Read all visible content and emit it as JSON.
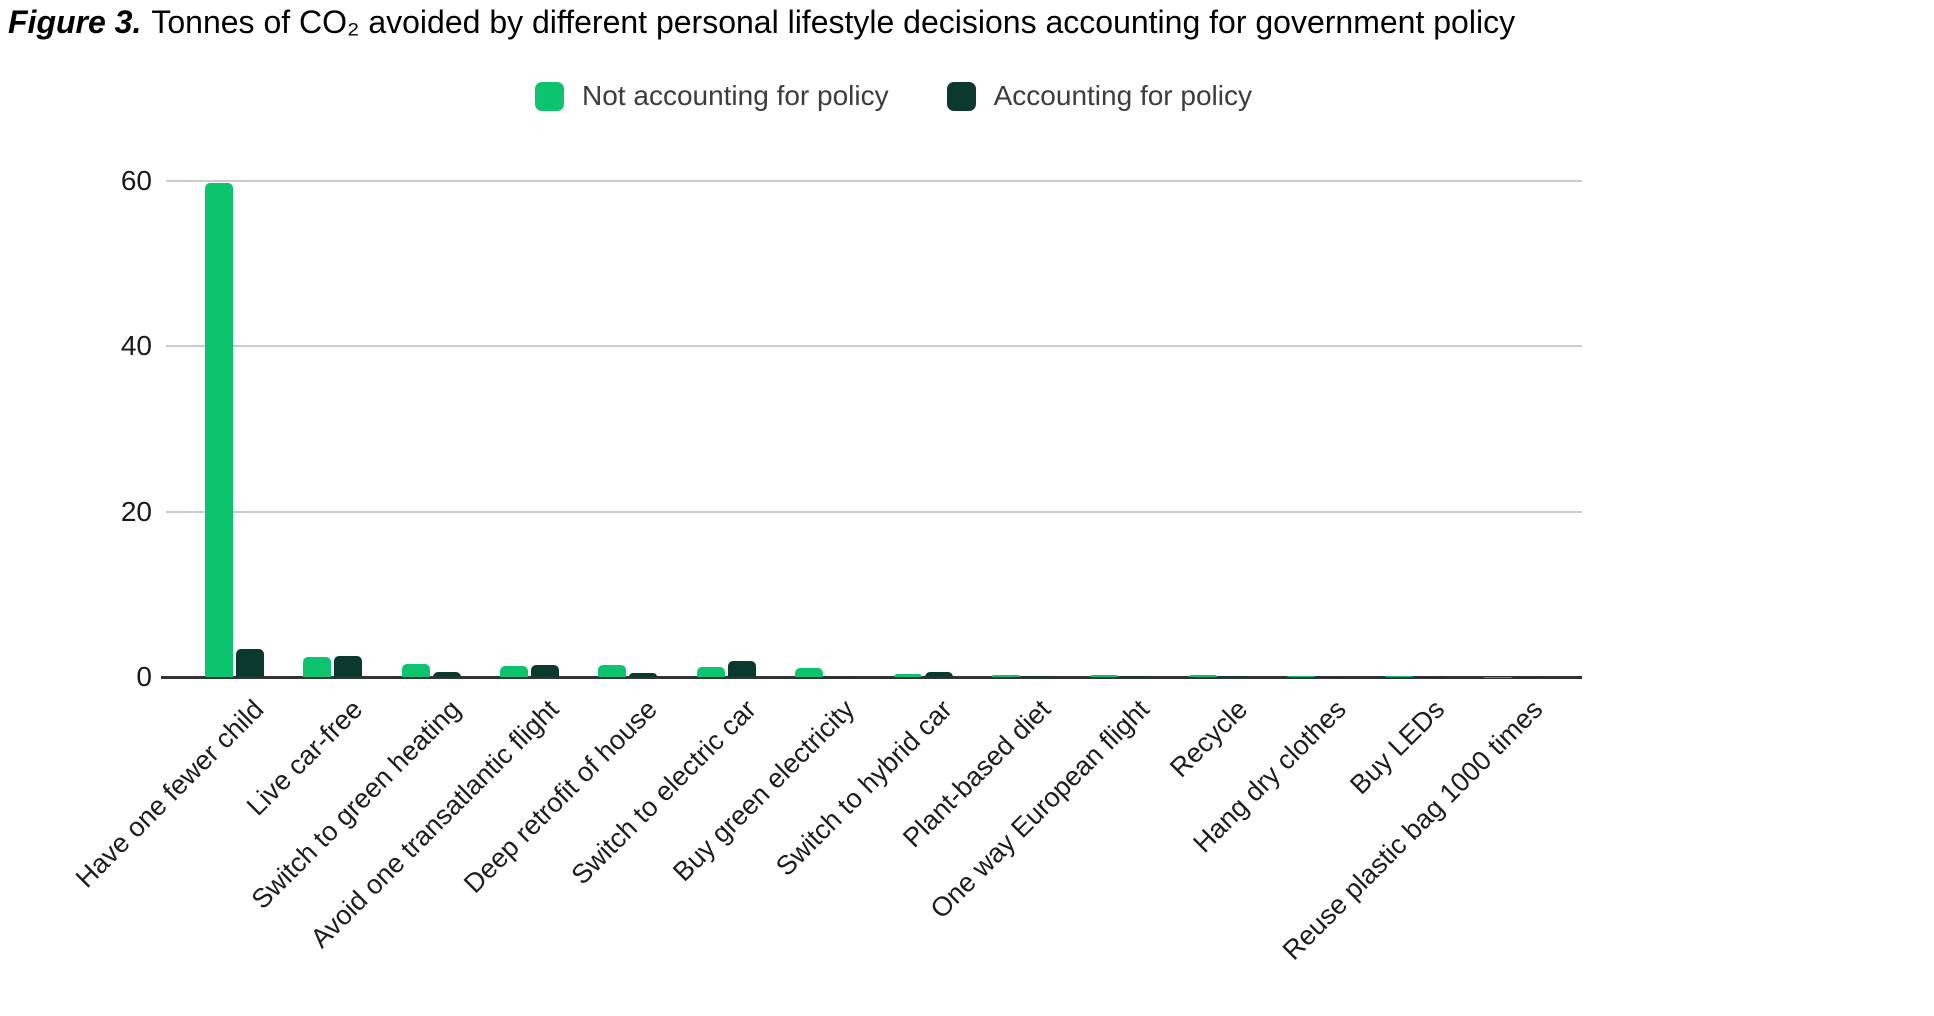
{
  "title": {
    "prefix": "Figure 3.",
    "text": "Tonnes of CO₂ avoided by different personal lifestyle decisions accounting for government policy"
  },
  "legend": {
    "items": [
      {
        "label": "Not accounting for policy",
        "color": "#0dc46e"
      },
      {
        "label": "Accounting for policy",
        "color": "#0b392e"
      }
    ]
  },
  "chart_data": {
    "type": "bar",
    "title": "Figure 3. Tonnes of CO₂ avoided by different personal lifestyle decisions accounting for government policy",
    "xlabel": "",
    "ylabel": "",
    "ylim": [
      0,
      65
    ],
    "yticks": [
      0,
      20,
      40,
      60
    ],
    "grid": true,
    "legend_position": "top",
    "categories": [
      "Have one fewer child",
      "Live car-free",
      "Switch to green heating",
      "Avoid one transatlantic flight",
      "Deep retrofit of house",
      "Switch to electric car",
      "Buy green electricity",
      "Switch to hybrid car",
      "Plant-based diet",
      "One way European flight",
      "Recycle",
      "Hang dry clothes",
      "Buy LEDs",
      "Reuse plastic bag 1000 times"
    ],
    "series": [
      {
        "name": "Not accounting for policy",
        "color": "#0dc46e",
        "values": [
          59.8,
          2.4,
          1.6,
          1.3,
          1.4,
          1.2,
          1.05,
          0.4,
          0.3,
          0.25,
          0.2,
          0.15,
          0.1,
          0.02
        ]
      },
      {
        "name": "Accounting for policy",
        "color": "#0b392e",
        "values": [
          3.4,
          2.5,
          0.6,
          1.4,
          0.45,
          1.9,
          0.05,
          0.55,
          0.1,
          0.1,
          0.1,
          0.05,
          0.02,
          0.01
        ]
      }
    ]
  }
}
